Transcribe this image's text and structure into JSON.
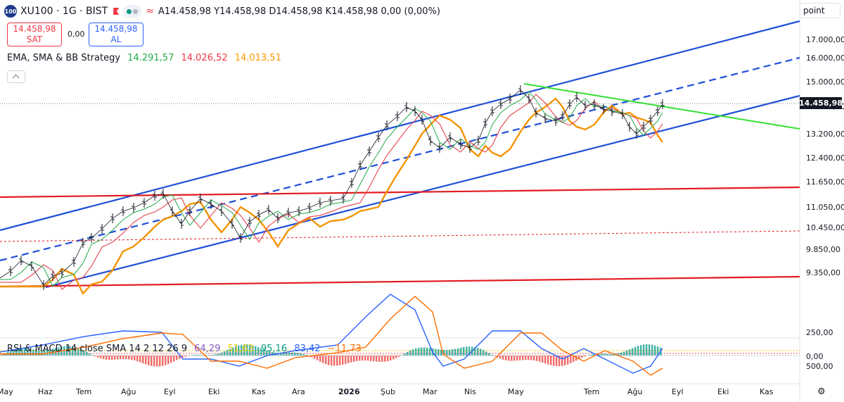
{
  "header": {
    "symbol_badge": "100",
    "title": "XU100 · 1G · BIST",
    "ohlc": "A14.458,98 Y14.458,98 D14.458,98 K14.458,98 0,00 (0,00%)",
    "unit_label": "point"
  },
  "trade": {
    "sell_price": "14.458,98",
    "sell_label": "SAT",
    "spread": "0,00",
    "buy_price": "14.458,98",
    "buy_label": "AL"
  },
  "indicator": {
    "name": "EMA, SMA & BB Strategy",
    "v1": "14.291,57",
    "v2": "14.026,52",
    "v3": "14.013,51",
    "c1": "#22ab4a",
    "c2": "#f23645",
    "c3": "#ff9800"
  },
  "oscillator": {
    "name": "RSI & MACD 14 close SMA 14 2 12 26 9",
    "v1": "64,29",
    "v2": "51,63",
    "v3": "95,16",
    "v4": "83,42",
    "v5": "−11,73",
    "c1": "#7e57c2",
    "c2": "#e6c700",
    "c3": "#089981",
    "c4": "#2962ff",
    "c5": "#ff6d00"
  },
  "price_axis": {
    "labels": [
      "17.000,00",
      "16.000,00",
      "15.000,00",
      "14.000,00",
      "13.200,00",
      "12.400,00",
      "11.650,00",
      "11.050,00",
      "10.450,00",
      "9.850,00",
      "9.350,00"
    ],
    "last_price": "14.458,98"
  },
  "osc_axis": {
    "labels": [
      "500,00",
      "250,00",
      "0,00"
    ]
  },
  "time_axis": {
    "labels": [
      "May",
      "Haz",
      "Tem",
      "Ağu",
      "Eyl",
      "Eki",
      "Kas",
      "Ara",
      "2026",
      "Şub",
      "Mar",
      "Nis",
      "May",
      "Tem",
      "Ağu",
      "Eyl",
      "Eki",
      "Kas"
    ]
  },
  "colors": {
    "channel": "#1e4fd8",
    "support": "#e31b23",
    "trend": "#33e033",
    "ema_orange": "#f59300",
    "ema_red": "#e8505b",
    "ema_green": "#22ab4a"
  },
  "icons": {
    "settings": "gear-icon"
  }
}
